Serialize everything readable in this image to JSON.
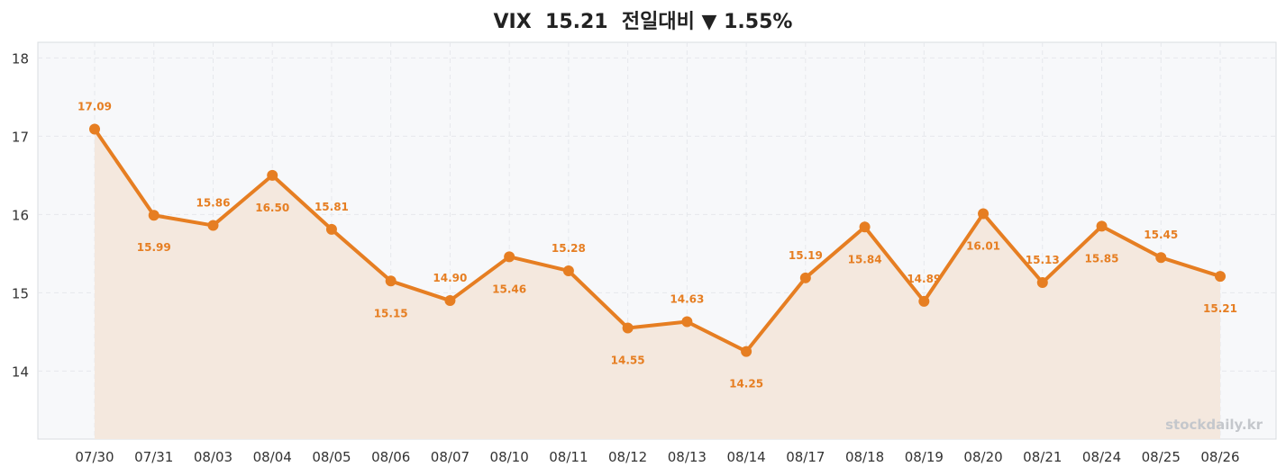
{
  "title": "VIX  15.21  전일대비 ▼ 1.55%",
  "watermark": "stockdaily.kr",
  "colors": {
    "line": "#e67e22",
    "fill": "#f4e8de",
    "plot_bg": "#f7f8fa",
    "grid": "#e6e8ec",
    "frame": "#d9dce0",
    "title": "#222222",
    "ticks": "#333333",
    "watermark": "#c4c7cc"
  },
  "chart_data": {
    "type": "line",
    "title": "VIX  15.21  전일대비 ▼ 1.55%",
    "xlabel": "",
    "ylabel": "",
    "categories": [
      "07/30",
      "07/31",
      "08/03",
      "08/04",
      "08/05",
      "08/06",
      "08/07",
      "08/10",
      "08/11",
      "08/12",
      "08/13",
      "08/14",
      "08/17",
      "08/18",
      "08/19",
      "08/20",
      "08/21",
      "08/24",
      "08/25",
      "08/26"
    ],
    "series": [
      {
        "values": [
          17.09,
          15.99,
          15.86,
          16.5,
          15.81,
          15.15,
          14.9,
          15.46,
          15.28,
          14.55,
          14.63,
          14.25,
          15.19,
          15.84,
          14.89,
          16.01,
          15.13,
          15.85,
          15.45,
          15.21
        ],
        "data_labels": [
          "17.09",
          "15.99",
          "15.86",
          "16.50",
          "15.81",
          "15.15",
          "14.90",
          "15.46",
          "15.28",
          "14.55",
          "14.63",
          "14.25",
          "15.19",
          "15.84",
          "14.89",
          "16.01",
          "15.13",
          "15.85",
          "15.45",
          "15.21"
        ],
        "label_positions": [
          "above",
          "below",
          "above",
          "below",
          "above",
          "below",
          "above",
          "below",
          "above",
          "below",
          "above",
          "below",
          "above",
          "below",
          "above",
          "below",
          "above",
          "below",
          "above",
          "below"
        ]
      }
    ],
    "ylim": [
      13.13,
      18.2
    ],
    "yticks": [
      14,
      15,
      16,
      17,
      18
    ],
    "grid": true,
    "area_fill": true,
    "legend": "none"
  }
}
